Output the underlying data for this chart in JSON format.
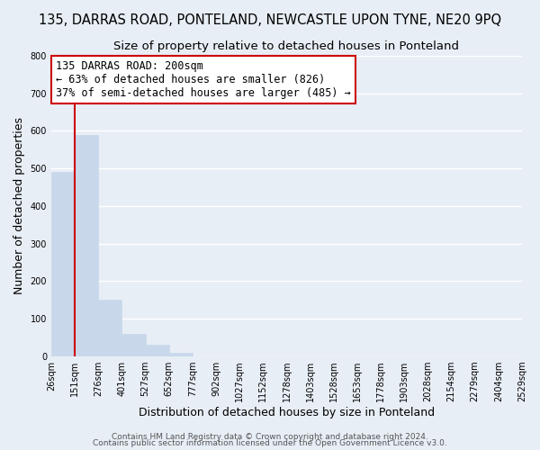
{
  "title": "135, DARRAS ROAD, PONTELAND, NEWCASTLE UPON TYNE, NE20 9PQ",
  "subtitle": "Size of property relative to detached houses in Ponteland",
  "xlabel": "Distribution of detached houses by size in Ponteland",
  "ylabel": "Number of detached properties",
  "bar_values": [
    490,
    590,
    150,
    60,
    30,
    10,
    0,
    0,
    0,
    0,
    0,
    0,
    0,
    0,
    0,
    0,
    0,
    0,
    0,
    0
  ],
  "bar_labels": [
    "26sqm",
    "151sqm",
    "276sqm",
    "401sqm",
    "527sqm",
    "652sqm",
    "777sqm",
    "902sqm",
    "1027sqm",
    "1152sqm",
    "1278sqm",
    "1403sqm",
    "1528sqm",
    "1653sqm",
    "1778sqm",
    "1903sqm",
    "2028sqm",
    "2154sqm",
    "2279sqm",
    "2404sqm",
    "2529sqm"
  ],
  "bar_color": "#c8d8ea",
  "vline_color": "#cc0000",
  "annotation_text_line1": "135 DARRAS ROAD: 200sqm",
  "annotation_text_line2": "← 63% of detached houses are smaller (826)",
  "annotation_text_line3": "37% of semi-detached houses are larger (485) →",
  "ylim": [
    0,
    800
  ],
  "yticks": [
    0,
    100,
    200,
    300,
    400,
    500,
    600,
    700,
    800
  ],
  "bg_color": "#e8eef6",
  "plot_bg_color": "#e8eef6",
  "grid_color": "#ffffff",
  "footer_line1": "Contains HM Land Registry data © Crown copyright and database right 2024.",
  "footer_line2": "Contains public sector information licensed under the Open Government Licence v3.0.",
  "title_fontsize": 10.5,
  "subtitle_fontsize": 9.5,
  "axis_label_fontsize": 9,
  "tick_fontsize": 7,
  "annotation_fontsize": 8.5,
  "footer_fontsize": 6.5
}
